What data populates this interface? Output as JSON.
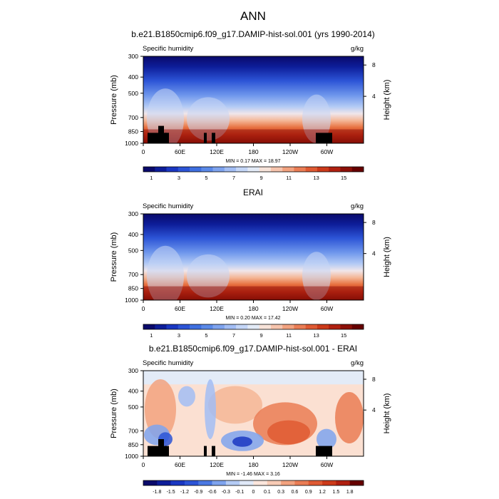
{
  "page_title": "ANN",
  "chart_data": [
    {
      "type": "heatmap",
      "title": "b.e21.B1850cmip6.f09_g17.DAMIP-hist-sol.001 (yrs 1990-2014)",
      "left_label": "Specific humidity",
      "right_label": "g/kg",
      "ylabel": "Pressure (mb)",
      "ylabel_right": "Height (km)",
      "xlabel": "",
      "x_ticks": [
        "0",
        "60E",
        "120E",
        "180",
        "120W",
        "60W"
      ],
      "y_ticks": [
        "300",
        "400",
        "500",
        "700",
        "850",
        "1000"
      ],
      "y_right_ticks": [
        "8",
        "4"
      ],
      "y_log_scale": true,
      "ylim": [
        1000,
        300
      ],
      "stats": "MIN =   0.17  MAX = 18.97",
      "colorbar_labels": [
        "1",
        "3",
        "5",
        "7",
        "9",
        "11",
        "13",
        "15"
      ],
      "colorbar_levels": [
        0.5,
        1,
        1.5,
        2,
        2.5,
        3,
        4,
        5,
        6,
        7,
        8,
        9,
        10,
        11,
        12,
        13,
        14,
        15
      ],
      "colors": [
        "#0a0a6b",
        "#0d1d99",
        "#1a37c2",
        "#2c54d6",
        "#3e6fe0",
        "#5a89e8",
        "#7ea3ee",
        "#a2bdf4",
        "#c4d6f7",
        "#e3ebf7",
        "#f7e3d9",
        "#f6c4ad",
        "#f2a27f",
        "#ea7d55",
        "#df5a33",
        "#cc3a1a",
        "#b02010",
        "#8c1008",
        "#660000"
      ],
      "max_value": 18.97
    },
    {
      "type": "heatmap",
      "title": "ERAI",
      "left_label": "Specific humidity",
      "right_label": "g/kg",
      "ylabel": "Pressure (mb)",
      "ylabel_right": "Height (km)",
      "xlabel": "",
      "x_ticks": [
        "0",
        "60E",
        "120E",
        "180",
        "120W",
        "60W"
      ],
      "y_ticks": [
        "300",
        "400",
        "500",
        "700",
        "850",
        "1000"
      ],
      "y_right_ticks": [
        "8",
        "4"
      ],
      "y_log_scale": true,
      "ylim": [
        1000,
        300
      ],
      "stats": "MIN =   0.20  MAX = 17.42",
      "colorbar_labels": [
        "1",
        "3",
        "5",
        "7",
        "9",
        "11",
        "13",
        "15"
      ],
      "colorbar_levels": [
        0.5,
        1,
        1.5,
        2,
        2.5,
        3,
        4,
        5,
        6,
        7,
        8,
        9,
        10,
        11,
        12,
        13,
        14,
        15
      ],
      "colors": [
        "#0a0a6b",
        "#0d1d99",
        "#1a37c2",
        "#2c54d6",
        "#3e6fe0",
        "#5a89e8",
        "#7ea3ee",
        "#a2bdf4",
        "#c4d6f7",
        "#e3ebf7",
        "#f7e3d9",
        "#f6c4ad",
        "#f2a27f",
        "#ea7d55",
        "#df5a33",
        "#cc3a1a",
        "#b02010",
        "#8c1008",
        "#660000"
      ],
      "max_value": 17.42
    },
    {
      "type": "heatmap",
      "title": "b.e21.B1850cmip6.f09_g17.DAMIP-hist-sol.001 - ERAI",
      "left_label": "Specific humidity",
      "right_label": "g/kg",
      "ylabel": "Pressure (mb)",
      "ylabel_right": "Height (km)",
      "xlabel": "",
      "x_ticks": [
        "0",
        "60E",
        "120E",
        "180",
        "120W",
        "60W"
      ],
      "y_ticks": [
        "300",
        "400",
        "500",
        "700",
        "850",
        "1000"
      ],
      "y_right_ticks": [
        "8",
        "4"
      ],
      "y_log_scale": true,
      "ylim": [
        1000,
        300
      ],
      "stats": "MIN =  -1.46  MAX =   3.16",
      "colorbar_labels": [
        "-1.8",
        "-1.5",
        "-1.2",
        "-0.9",
        "-0.6",
        "-0.3",
        "-0.1",
        "0",
        "0.1",
        "0.3",
        "0.6",
        "0.9",
        "1.2",
        "1.5",
        "1.8"
      ],
      "colorbar_levels": [
        -1.8,
        -1.5,
        -1.2,
        -0.9,
        -0.6,
        -0.3,
        -0.1,
        0,
        0.1,
        0.3,
        0.6,
        0.9,
        1.2,
        1.5,
        1.8
      ],
      "colors": [
        "#0a0a6b",
        "#0d1d99",
        "#1a37c2",
        "#2c54d6",
        "#4a78e2",
        "#7ea3ee",
        "#b4cbf5",
        "#e0e9f8",
        "#fbe6dc",
        "#f8cbb5",
        "#f2a27f",
        "#ea7d55",
        "#df5a33",
        "#cc3a1a",
        "#b02010",
        "#660000"
      ],
      "min_value": -1.46,
      "max_value": 3.16
    }
  ]
}
